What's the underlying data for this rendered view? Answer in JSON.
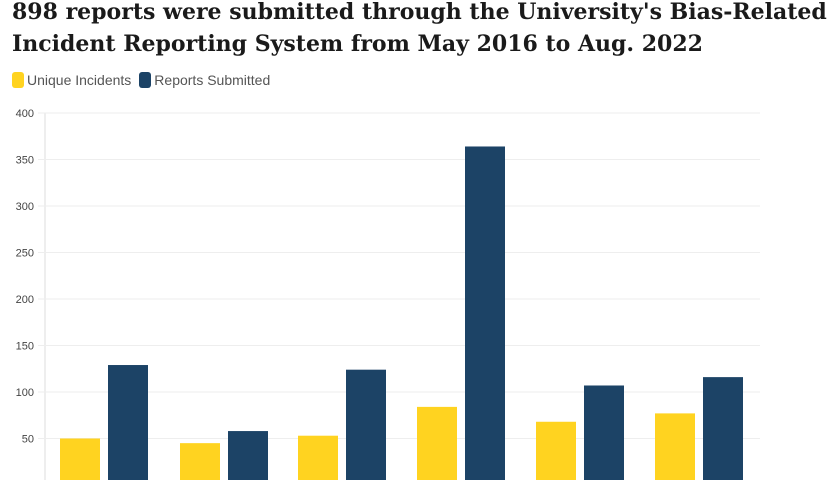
{
  "title_line1": "898 reports were submitted through the University's Bias-Related",
  "title_line2": "Incident Reporting System from May 2016 to Aug. 2022",
  "chart_data": {
    "type": "bar",
    "title": "898 reports were submitted through the University's Bias-Related Incident Reporting System from May 2016 to Aug. 2022",
    "categories": [
      "",
      "",
      "",
      "",
      "",
      ""
    ],
    "series": [
      {
        "name": "Unique Incidents",
        "color": "#FFD320",
        "values": [
          50,
          45,
          53,
          84,
          68,
          77
        ]
      },
      {
        "name": "Reports Submitted",
        "color": "#1C4366",
        "values": [
          129,
          58,
          124,
          364,
          107,
          116
        ]
      }
    ],
    "ylim": [
      0,
      400
    ],
    "yticks": [
      50,
      100,
      150,
      200,
      250,
      300,
      350,
      400
    ],
    "grid": true,
    "legend": "top-left"
  }
}
